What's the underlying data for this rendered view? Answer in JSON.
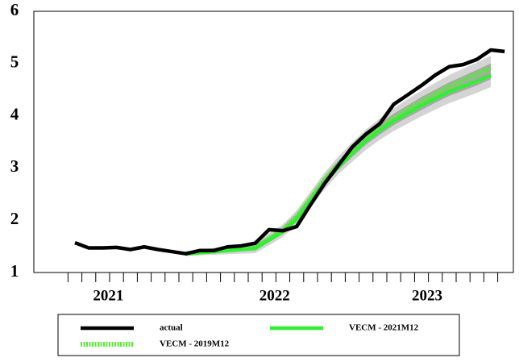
{
  "chart_data": {
    "type": "line",
    "categories": [
      null,
      null,
      "2021",
      null,
      null,
      null,
      null,
      null,
      null,
      null,
      null,
      null,
      null,
      null,
      "2022",
      null,
      null,
      null,
      null,
      null,
      null,
      null,
      null,
      null,
      null,
      "2023",
      null,
      null,
      null,
      null,
      null,
      null
    ],
    "series": [
      {
        "name": "actual",
        "color": "#000000",
        "style": "solid",
        "values": [
          1.57,
          1.47,
          1.47,
          1.48,
          1.44,
          1.49,
          1.44,
          1.4,
          1.36,
          1.42,
          1.42,
          1.49,
          1.51,
          1.56,
          1.82,
          1.8,
          1.88,
          2.3,
          2.7,
          3.05,
          3.4,
          3.65,
          3.85,
          4.22,
          4.4,
          4.58,
          4.78,
          4.94,
          4.98,
          5.08,
          5.26,
          5.23
        ]
      },
      {
        "name": "VECM - 2021M12",
        "color": "#33ee33",
        "style": "solid",
        "values": [
          null,
          null,
          null,
          null,
          null,
          null,
          null,
          null,
          1.36,
          1.38,
          1.4,
          1.42,
          1.44,
          1.46,
          1.62,
          1.78,
          2.02,
          2.38,
          2.72,
          3.02,
          3.28,
          3.52,
          3.72,
          3.9,
          4.05,
          4.2,
          4.33,
          4.46,
          4.56,
          4.66,
          4.78,
          null
        ]
      },
      {
        "name": "VECM - 2019M12",
        "color": "#55ee33",
        "style": "dotted",
        "values": [
          null,
          null,
          null,
          null,
          null,
          null,
          null,
          null,
          1.36,
          1.39,
          1.41,
          1.44,
          1.46,
          1.48,
          1.65,
          1.82,
          2.08,
          2.42,
          2.78,
          3.08,
          3.33,
          3.57,
          3.77,
          3.95,
          4.12,
          4.27,
          4.42,
          4.56,
          4.68,
          4.8,
          4.92,
          null
        ]
      }
    ],
    "bands": [
      {
        "color": "#d4d4d4",
        "lower": [
          null,
          null,
          null,
          null,
          null,
          null,
          null,
          null,
          1.32,
          1.33,
          1.34,
          1.35,
          1.36,
          1.37,
          1.52,
          1.68,
          1.91,
          2.25,
          2.59,
          2.88,
          3.12,
          3.35,
          3.54,
          3.71,
          3.85,
          3.99,
          4.12,
          4.24,
          4.34,
          4.44,
          4.55,
          null
        ],
        "upper": [
          null,
          null,
          null,
          null,
          null,
          null,
          null,
          null,
          1.4,
          1.44,
          1.47,
          1.51,
          1.54,
          1.57,
          1.75,
          1.92,
          2.19,
          2.55,
          2.91,
          3.22,
          3.49,
          3.74,
          3.95,
          4.14,
          4.32,
          4.48,
          4.63,
          4.78,
          4.9,
          5.02,
          5.15,
          null
        ]
      },
      {
        "color": "#a8a8a8",
        "lower": [
          null,
          null,
          null,
          null,
          null,
          null,
          null,
          null,
          1.34,
          1.36,
          1.37,
          1.39,
          1.41,
          1.42,
          1.58,
          1.74,
          1.98,
          2.33,
          2.67,
          2.96,
          3.21,
          3.45,
          3.64,
          3.82,
          3.97,
          4.11,
          4.25,
          4.38,
          4.48,
          4.58,
          4.7,
          null
        ],
        "upper": [
          null,
          null,
          null,
          null,
          null,
          null,
          null,
          null,
          1.38,
          1.41,
          1.44,
          1.47,
          1.49,
          1.52,
          1.69,
          1.86,
          2.12,
          2.47,
          2.83,
          3.14,
          3.4,
          3.64,
          3.85,
          4.04,
          4.2,
          4.36,
          4.5,
          4.64,
          4.76,
          4.88,
          5.0,
          null
        ]
      }
    ],
    "ylim": [
      1,
      6
    ],
    "yticks": [
      1,
      2,
      3,
      4,
      5,
      6
    ],
    "grid": false,
    "legend": "bottom"
  }
}
